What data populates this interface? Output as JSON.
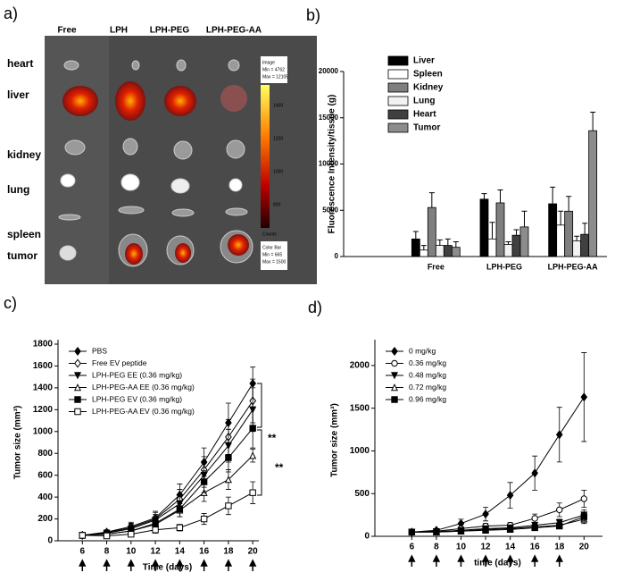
{
  "panel_a": {
    "label": "a)",
    "columns": [
      "Free",
      "LPH",
      "LPH-PEG",
      "LPH-PEG-AA"
    ],
    "rows": [
      "heart",
      "liver",
      "kidney",
      "lung",
      "spleen",
      "tumor"
    ],
    "image_info": [
      "Image",
      "Min = 4762",
      "Max = 12105"
    ],
    "colorbar_ticks": [
      1400,
      1200,
      1000,
      800
    ],
    "colorbar_unit": "Counts",
    "colorbar_info": [
      "Color Bar",
      "Min = 665",
      "Max = 1500"
    ]
  },
  "chart_data": [
    {
      "type": "bar",
      "label": "b)",
      "y_label": "Fluorescence Intensity/tissue (g)",
      "categories": [
        "Free",
        "LPH-PEG",
        "LPH-PEG-AA"
      ],
      "series": [
        {
          "name": "Liver",
          "color": "#000000",
          "values": [
            1900,
            6200,
            5700
          ],
          "errors": [
            800,
            600,
            1800
          ]
        },
        {
          "name": "Spleen",
          "color": "#ffffff",
          "values": [
            700,
            1900,
            3400
          ],
          "errors": [
            500,
            1800,
            1500
          ]
        },
        {
          "name": "Kidney",
          "color": "#7f7f7f",
          "values": [
            5300,
            5800,
            4900
          ],
          "errors": [
            1600,
            1400,
            1600
          ]
        },
        {
          "name": "Lung",
          "color": "#f2f2f2",
          "values": [
            1200,
            1300,
            1700
          ],
          "errors": [
            600,
            300,
            500
          ]
        },
        {
          "name": "Heart",
          "color": "#404040",
          "values": [
            1200,
            2300,
            2400
          ],
          "errors": [
            700,
            600,
            1200
          ]
        },
        {
          "name": "Tumor",
          "color": "#8c8c8c",
          "values": [
            1000,
            3200,
            13600
          ],
          "errors": [
            600,
            1700,
            2000
          ]
        }
      ],
      "ylim": [
        0,
        20000
      ],
      "yticks": [
        0,
        5000,
        10000,
        15000,
        20000
      ],
      "legend": "upper left"
    },
    {
      "type": "line",
      "label": "c)",
      "x_label": "Time (days)",
      "y_label": "Tumor size (mm³)",
      "x": [
        6,
        8,
        10,
        12,
        14,
        16,
        18,
        20
      ],
      "series": [
        {
          "name": "PBS",
          "color": "#000000",
          "marker": "diamond",
          "filled": true,
          "values": [
            50,
            80,
            130,
            210,
            420,
            720,
            1080,
            1440
          ],
          "errors": [
            10,
            20,
            40,
            60,
            100,
            130,
            180,
            150
          ]
        },
        {
          "name": "Free EV peptide",
          "color": "#000000",
          "marker": "diamond",
          "filled": false,
          "values": [
            50,
            75,
            120,
            200,
            380,
            650,
            950,
            1280
          ],
          "errors": [
            10,
            20,
            40,
            60,
            90,
            120,
            160,
            200
          ]
        },
        {
          "name": "LPH-PEG EE (0.36 mg/kg)",
          "color": "#000000",
          "marker": "triangle-down",
          "filled": true,
          "values": [
            50,
            70,
            110,
            190,
            340,
            600,
            870,
            1200
          ],
          "errors": [
            10,
            20,
            40,
            50,
            80,
            110,
            150,
            200
          ]
        },
        {
          "name": "LPH-PEG-AA EE (0.36 mg/kg)",
          "color": "#000000",
          "marker": "triangle-up",
          "filled": false,
          "values": [
            50,
            60,
            90,
            150,
            280,
            440,
            560,
            780
          ],
          "errors": [
            10,
            15,
            30,
            40,
            60,
            80,
            90,
            60
          ]
        },
        {
          "name": "LPH-PEG EV (0.36 mg/kg)",
          "color": "#000000",
          "marker": "square",
          "filled": true,
          "values": [
            50,
            60,
            90,
            160,
            290,
            540,
            760,
            1030
          ],
          "errors": [
            10,
            15,
            30,
            40,
            70,
            100,
            130,
            180
          ]
        },
        {
          "name": "LPH-PEG-AA EV (0.36 mg/kg)",
          "color": "#000000",
          "marker": "square",
          "filled": false,
          "values": [
            50,
            45,
            60,
            100,
            120,
            200,
            320,
            440
          ],
          "errors": [
            10,
            10,
            20,
            30,
            30,
            50,
            80,
            100
          ]
        }
      ],
      "xlim": [
        4,
        20.5
      ],
      "xticks": [
        6,
        8,
        10,
        12,
        14,
        16,
        18,
        20
      ],
      "ylim": [
        0,
        1800
      ],
      "yticks": [
        0,
        200,
        400,
        600,
        800,
        1000,
        1200,
        1400,
        1600,
        1800
      ],
      "injection_days": [
        6,
        8,
        10,
        12,
        14,
        16,
        18,
        20
      ],
      "annotations": [
        "**",
        "**"
      ],
      "legend": "upper left"
    },
    {
      "type": "line",
      "label": "d)",
      "x_label": "time (days)",
      "y_label": "Tumor size (mm³)",
      "x": [
        6,
        8,
        10,
        12,
        14,
        16,
        18,
        20
      ],
      "series": [
        {
          "name": "0 mg/kg",
          "color": "#000000",
          "marker": "diamond",
          "filled": true,
          "values": [
            50,
            70,
            150,
            260,
            480,
            740,
            1190,
            1630
          ],
          "errors": [
            10,
            20,
            50,
            80,
            150,
            200,
            320,
            520
          ]
        },
        {
          "name": "0.36 mg/kg",
          "color": "#000000",
          "marker": "circle",
          "filled": false,
          "values": [
            50,
            60,
            90,
            120,
            130,
            210,
            310,
            440
          ],
          "errors": [
            10,
            10,
            20,
            30,
            30,
            50,
            80,
            100
          ]
        },
        {
          "name": "0.48 mg/kg",
          "color": "#000000",
          "marker": "triangle-down",
          "filled": true,
          "values": [
            50,
            55,
            70,
            90,
            100,
            130,
            160,
            250
          ],
          "errors": [
            10,
            10,
            15,
            20,
            20,
            30,
            40,
            60
          ]
        },
        {
          "name": "0.72 mg/kg",
          "color": "#000000",
          "marker": "triangle-up",
          "filled": false,
          "values": [
            50,
            50,
            60,
            80,
            90,
            110,
            130,
            200
          ],
          "errors": [
            10,
            10,
            15,
            20,
            20,
            30,
            30,
            50
          ]
        },
        {
          "name": "0.96 mg/kg",
          "color": "#000000",
          "marker": "square",
          "filled": true,
          "values": [
            50,
            50,
            60,
            70,
            80,
            100,
            120,
            230
          ],
          "errors": [
            10,
            10,
            15,
            15,
            20,
            25,
            30,
            50
          ]
        }
      ],
      "xlim": [
        3,
        21.5
      ],
      "xticks": [
        6,
        8,
        10,
        12,
        14,
        16,
        18,
        20
      ],
      "ylim": [
        0,
        2250
      ],
      "yticks": [
        0,
        500,
        1000,
        1500,
        2000
      ],
      "injection_days": [
        6,
        8,
        10,
        12,
        14,
        16,
        18
      ],
      "legend": "upper left"
    }
  ]
}
